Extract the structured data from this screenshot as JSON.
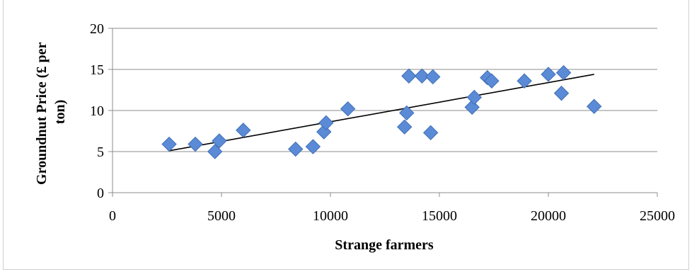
{
  "chart_data": {
    "type": "scatter",
    "xlabel": "Strange farmers",
    "ylabel_lines": [
      "Groundnut Price (£ per",
      "ton)"
    ],
    "xlim": [
      0,
      25000
    ],
    "ylim": [
      0,
      20
    ],
    "x_ticks": [
      "0",
      "5000",
      "10000",
      "15000",
      "20000",
      "25000"
    ],
    "y_ticks": [
      "0",
      "5",
      "10",
      "15",
      "20"
    ],
    "grid": "horizontal",
    "marker_color": "#5B8BD6",
    "marker_edge": "#3F6FB5",
    "trendline": {
      "x": [
        2600,
        22100
      ],
      "y": [
        5.1,
        14.4
      ]
    },
    "points": [
      {
        "x": 2600,
        "y": 5.9
      },
      {
        "x": 3800,
        "y": 5.9
      },
      {
        "x": 4700,
        "y": 5.0
      },
      {
        "x": 4900,
        "y": 6.3
      },
      {
        "x": 6000,
        "y": 7.6
      },
      {
        "x": 8400,
        "y": 5.3
      },
      {
        "x": 9200,
        "y": 5.6
      },
      {
        "x": 9700,
        "y": 7.4
      },
      {
        "x": 9800,
        "y": 8.5
      },
      {
        "x": 10800,
        "y": 10.2
      },
      {
        "x": 13400,
        "y": 8.0
      },
      {
        "x": 13500,
        "y": 9.7
      },
      {
        "x": 13600,
        "y": 14.2
      },
      {
        "x": 14200,
        "y": 14.2
      },
      {
        "x": 14600,
        "y": 7.3
      },
      {
        "x": 14700,
        "y": 14.1
      },
      {
        "x": 16500,
        "y": 10.4
      },
      {
        "x": 16600,
        "y": 11.6
      },
      {
        "x": 17200,
        "y": 14.0
      },
      {
        "x": 17400,
        "y": 13.6
      },
      {
        "x": 18900,
        "y": 13.6
      },
      {
        "x": 20000,
        "y": 14.4
      },
      {
        "x": 20600,
        "y": 12.1
      },
      {
        "x": 20700,
        "y": 14.6
      },
      {
        "x": 22100,
        "y": 10.5
      }
    ]
  }
}
